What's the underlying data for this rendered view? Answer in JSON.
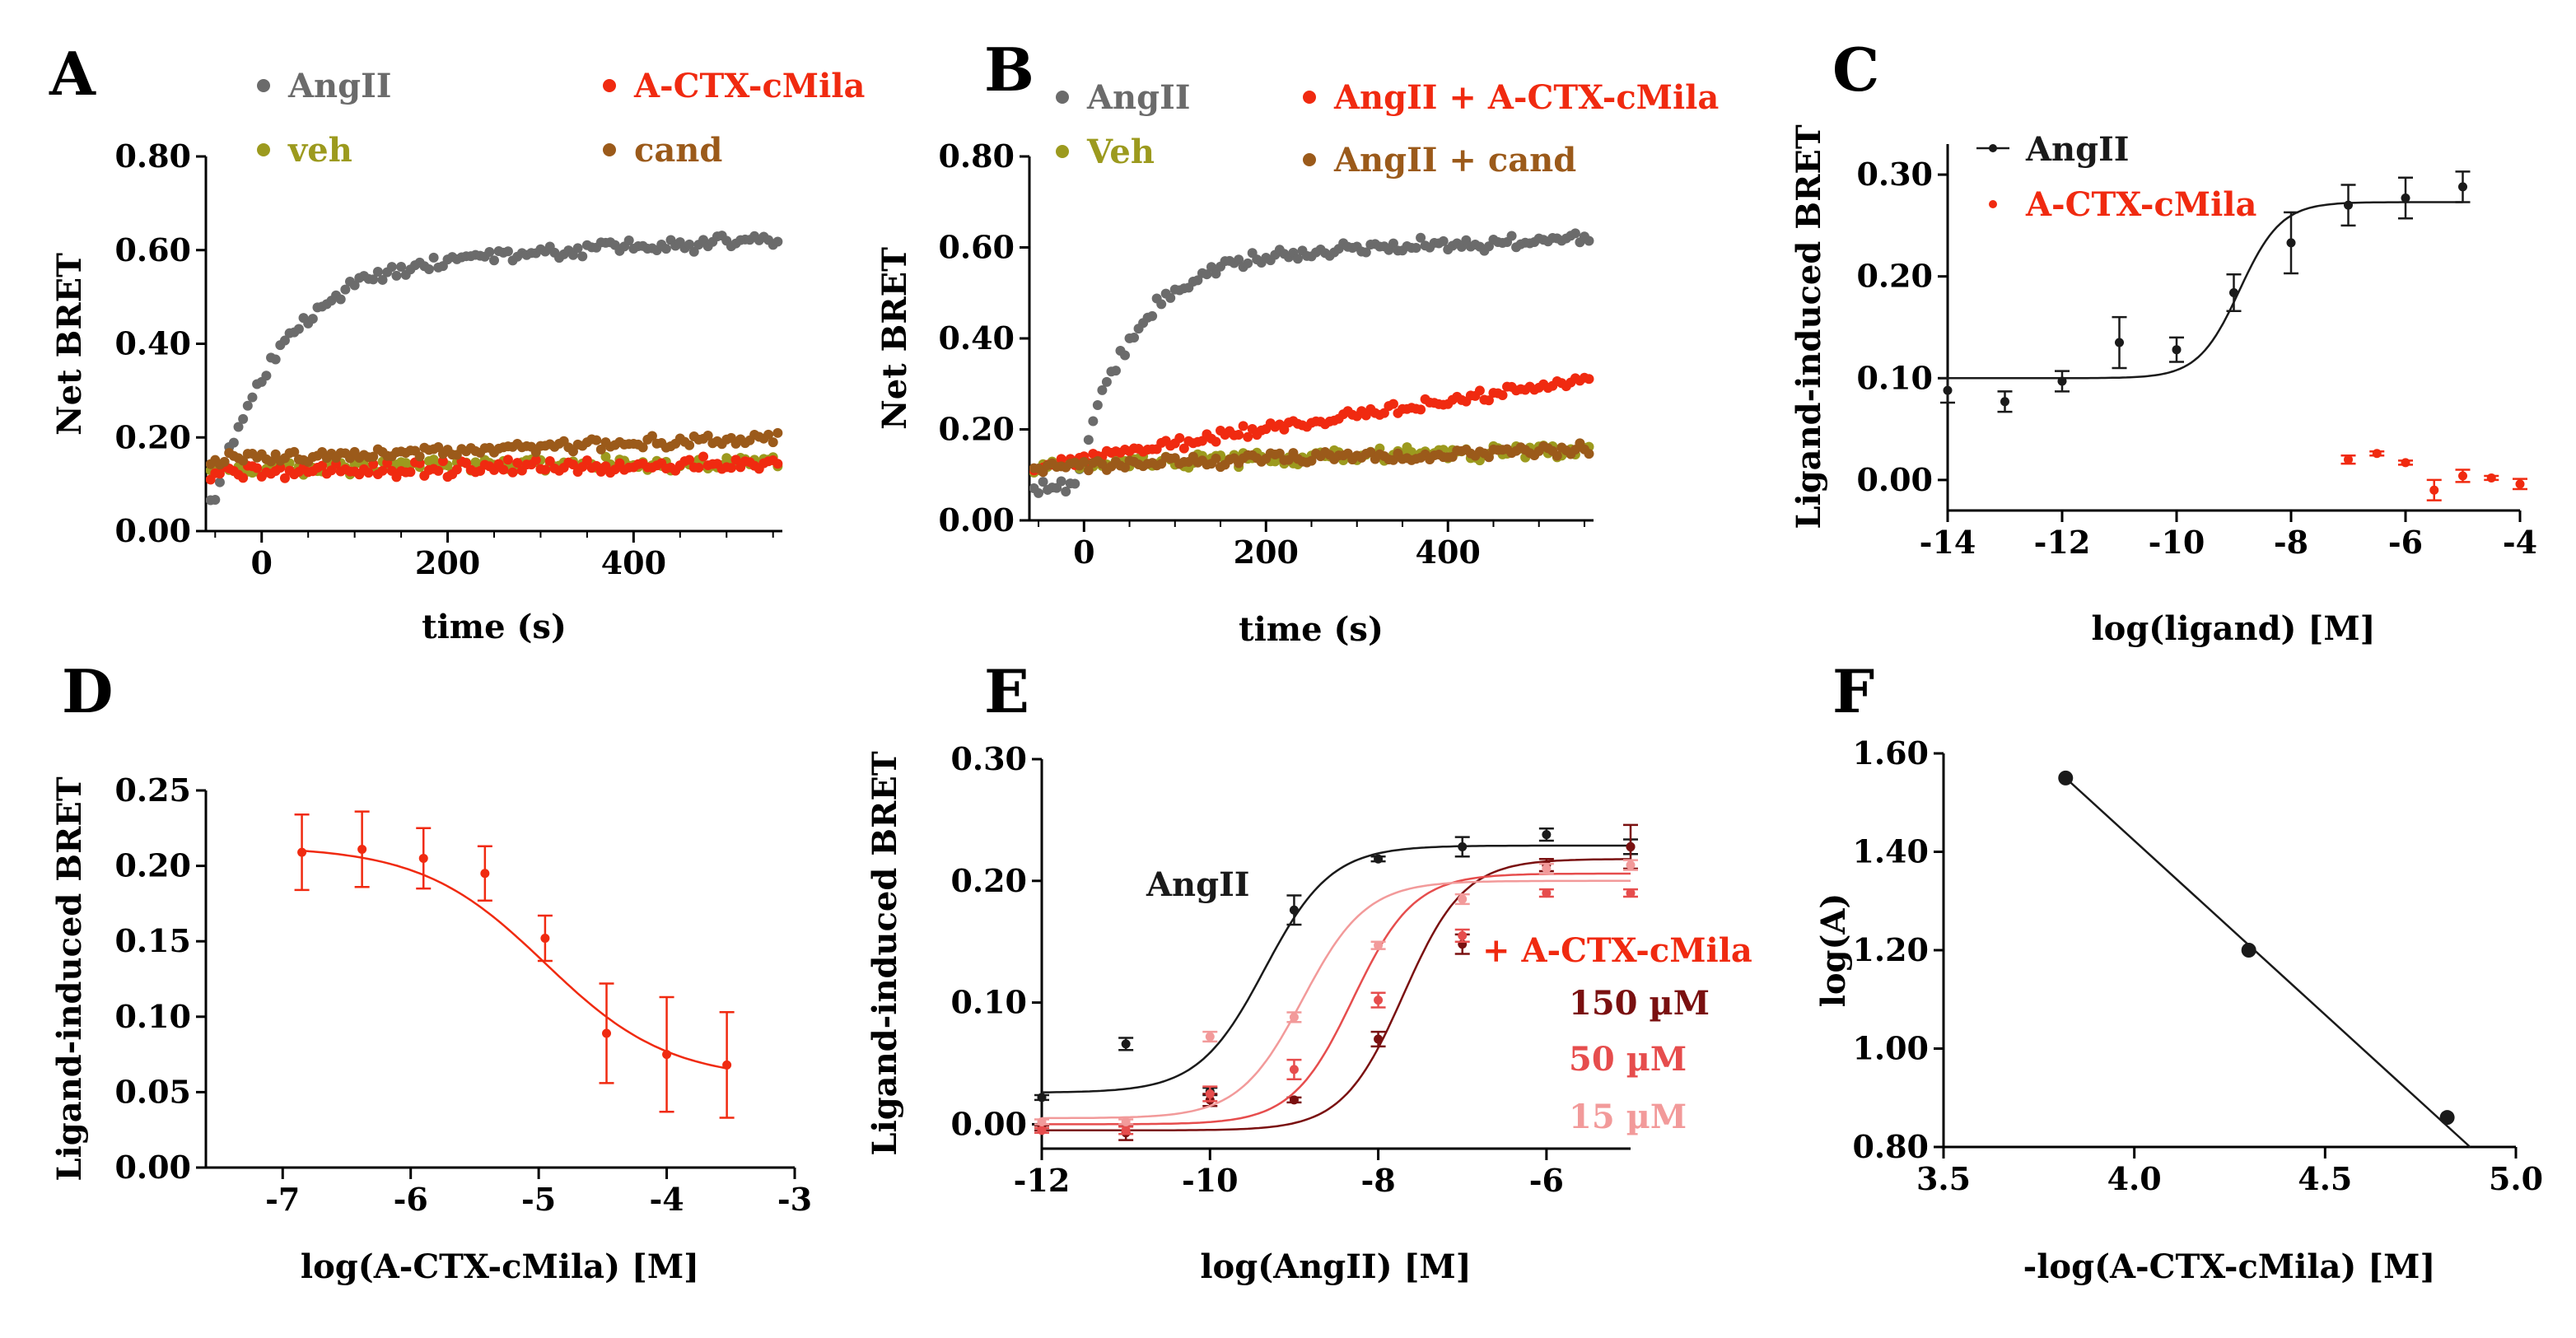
{
  "chart_data": [
    {
      "id": "A",
      "type": "scatter",
      "panel_label": "A",
      "xlabel": "time (s)",
      "ylabel": "Net BRET",
      "xlim": [
        -60,
        560
      ],
      "ylim": [
        0,
        0.8
      ],
      "xticks": [
        0,
        200,
        400
      ],
      "xtick_labels": [
        "0",
        "200",
        "400"
      ],
      "yticks": [
        0,
        0.2,
        0.4,
        0.6,
        0.8
      ],
      "ytick_labels": [
        "0.00",
        "0.20",
        "0.40",
        "0.60",
        "0.80"
      ],
      "legend": "top",
      "series": [
        {
          "name": "AngII",
          "color": "#6b6b6b",
          "model": "rise",
          "start": 0.075,
          "plateau": 0.575,
          "t0": -50,
          "tau": 70,
          "slope": 8e-05,
          "noise": 0.012
        },
        {
          "name": "veh",
          "color": "#9c9a1e",
          "model": "linear",
          "y0": 0.13,
          "slope": 3e-05,
          "noise": 0.012
        },
        {
          "name": "A-CTX-cMila",
          "color": "#f02a10",
          "model": "linear",
          "y0": 0.125,
          "slope": 3e-05,
          "noise": 0.012
        },
        {
          "name": "cand",
          "color": "#9b5a1a",
          "model": "linear",
          "y0": 0.152,
          "slope": 8e-05,
          "noise": 0.01
        }
      ]
    },
    {
      "id": "B",
      "type": "scatter",
      "panel_label": "B",
      "xlabel": "time (s)",
      "ylabel": "Net BRET",
      "xlim": [
        -60,
        560
      ],
      "ylim": [
        0,
        0.8
      ],
      "xticks": [
        0,
        200,
        400
      ],
      "xtick_labels": [
        "0",
        "200",
        "400"
      ],
      "yticks": [
        0,
        0.2,
        0.4,
        0.6,
        0.8
      ],
      "ytick_labels": [
        "0.00",
        "0.20",
        "0.40",
        "0.60",
        "0.80"
      ],
      "legend": "top",
      "series": [
        {
          "name": "AngII",
          "color": "#6b6b6b",
          "model": "rise",
          "start": 0.075,
          "plateau": 0.575,
          "t0": -10,
          "tau": 60,
          "slope": 8e-05,
          "noise": 0.012
        },
        {
          "name": "Veh",
          "color": "#9c9a1e",
          "model": "linear",
          "y0": 0.12,
          "slope": 6e-05,
          "noise": 0.012
        },
        {
          "name": "AngII + A-CTX-cMila",
          "color": "#f02a10",
          "model": "linear",
          "y0": 0.12,
          "slope": 0.00032,
          "noise": 0.01
        },
        {
          "name": "AngII + cand",
          "color": "#9b5a1a",
          "model": "linear",
          "y0": 0.12,
          "slope": 6e-05,
          "noise": 0.01
        }
      ]
    },
    {
      "id": "C",
      "type": "scatter",
      "panel_label": "C",
      "xlabel": "log(ligand) [M]",
      "ylabel": "Ligand-induced BRET",
      "xlim": [
        -14,
        -4
      ],
      "ylim": [
        -0.03,
        0.33
      ],
      "xticks": [
        -14,
        -12,
        -10,
        -8,
        -6,
        -4
      ],
      "xtick_labels": [
        "-14",
        "-12",
        "-10",
        "-8",
        "-6",
        "-4"
      ],
      "yticks": [
        0,
        0.1,
        0.2,
        0.3
      ],
      "ytick_labels": [
        "0.00",
        "0.10",
        "0.20",
        "0.30"
      ],
      "legend": "top-left",
      "series": [
        {
          "name": "AngII",
          "color": "#1a1a1a",
          "x": [
            -14,
            -13,
            -12,
            -11,
            -10,
            -9,
            -8,
            -7,
            -6,
            -5
          ],
          "y": [
            0.088,
            0.077,
            0.097,
            0.135,
            0.128,
            0.184,
            0.233,
            0.27,
            0.277,
            0.288
          ],
          "err": [
            0.012,
            0.01,
            0.01,
            0.025,
            0.012,
            0.018,
            0.03,
            0.02,
            0.02,
            0.015
          ],
          "fit": {
            "bottom": 0.1,
            "top": 0.273,
            "logEC50": -8.9,
            "hill": 1.2
          }
        },
        {
          "name": "A-CTX-cMila",
          "color": "#f02a10",
          "x": [
            -7,
            -6.5,
            -6,
            -5.5,
            -5,
            -4.5,
            -4
          ],
          "y": [
            0.02,
            0.026,
            0.017,
            -0.01,
            0.004,
            0.002,
            -0.004
          ],
          "err": [
            0.004,
            0.002,
            0.002,
            0.01,
            0.006,
            0.002,
            0.005
          ]
        }
      ]
    },
    {
      "id": "D",
      "type": "scatter",
      "panel_label": "D",
      "xlabel": "log(A-CTX-cMila) [M]",
      "ylabel": "Ligand-induced BRET",
      "xlim": [
        -7.6,
        -3
      ],
      "ylim": [
        0,
        0.25
      ],
      "xticks": [
        -7,
        -6,
        -5,
        -4,
        -3
      ],
      "xtick_labels": [
        "-7",
        "-6",
        "-5",
        "-4",
        "-3"
      ],
      "yticks": [
        0,
        0.05,
        0.1,
        0.15,
        0.2,
        0.25
      ],
      "ytick_labels": [
        "0.00",
        "0.05",
        "0.10",
        "0.15",
        "0.20",
        "0.25"
      ],
      "legend": "none",
      "series": [
        {
          "name": "A-CTX-cMila",
          "color": "#f02a10",
          "x": [
            -6.85,
            -6.38,
            -5.9,
            -5.42,
            -4.95,
            -4.47,
            -4.0,
            -3.53
          ],
          "y": [
            0.209,
            0.211,
            0.205,
            0.195,
            0.152,
            0.089,
            0.075,
            0.068
          ],
          "err": [
            0.025,
            0.025,
            0.02,
            0.018,
            0.015,
            0.033,
            0.038,
            0.035
          ],
          "fit": {
            "bottom": 0.058,
            "top": 0.213,
            "logEC50": -4.95,
            "hill": -0.9
          }
        }
      ]
    },
    {
      "id": "E",
      "type": "scatter",
      "panel_label": "E",
      "xlabel": "log(AngII) [M]",
      "ylabel": "Ligand-induced BRET",
      "xlim": [
        -12,
        -5
      ],
      "ylim": [
        -0.02,
        0.3
      ],
      "xticks": [
        -12,
        -10,
        -8,
        -6
      ],
      "xtick_labels": [
        "-12",
        "-10",
        "-8",
        "-6"
      ],
      "yticks": [
        0,
        0.1,
        0.2,
        0.3
      ],
      "ytick_labels": [
        "0.00",
        "0.10",
        "0.20",
        "0.30"
      ],
      "legend": "inline",
      "annotations": {
        "angii": "AngII",
        "plus": "+ A-CTX-cMila"
      },
      "series": [
        {
          "name": "AngII",
          "color": "#1a1a1a",
          "x": [
            -12,
            -11,
            -10,
            -9,
            -8,
            -7,
            -6,
            -5
          ],
          "y": [
            0.022,
            0.066,
            0.027,
            0.176,
            0.218,
            0.228,
            0.238,
            0.228
          ],
          "err": [
            0.002,
            0.005,
            0.003,
            0.012,
            0.002,
            0.008,
            0.005,
            0.006
          ],
          "fit": {
            "bottom": 0.026,
            "top": 0.229,
            "logEC50": -9.35,
            "hill": 1.1
          }
        },
        {
          "name": "150 µM",
          "color": "#7a1010",
          "x": [
            -12,
            -11,
            -10,
            -9,
            -8,
            -7,
            -6,
            -5
          ],
          "y": [
            -0.003,
            -0.007,
            0.02,
            0.02,
            0.07,
            0.148,
            0.213,
            0.228
          ],
          "err": [
            0.002,
            0.006,
            0.005,
            0.002,
            0.006,
            0.008,
            0.005,
            0.018
          ],
          "fit": {
            "bottom": -0.005,
            "top": 0.218,
            "logEC50": -7.7,
            "hill": 1.2
          }
        },
        {
          "name": "50 µM",
          "color": "#e64d4d",
          "x": [
            -12,
            -11,
            -10,
            -9,
            -8,
            -7,
            -6,
            -5
          ],
          "y": [
            -0.005,
            -0.005,
            0.025,
            0.045,
            0.102,
            0.155,
            0.19,
            0.19
          ],
          "err": [
            0.002,
            0.003,
            0.006,
            0.008,
            0.006,
            0.005,
            0.003,
            0.003
          ],
          "fit": {
            "bottom": 0.0,
            "top": 0.206,
            "logEC50": -8.3,
            "hill": 1.2
          }
        },
        {
          "name": "15 µM",
          "color": "#f29a9a",
          "x": [
            -12,
            -11,
            -10,
            -9,
            -8,
            -7,
            -6,
            -5
          ],
          "y": [
            0.002,
            0.002,
            0.072,
            0.088,
            0.147,
            0.185,
            0.21,
            0.213
          ],
          "err": [
            0.002,
            0.002,
            0.004,
            0.004,
            0.003,
            0.004,
            0.004,
            0.004
          ],
          "fit": {
            "bottom": 0.005,
            "top": 0.2,
            "logEC50": -8.9,
            "hill": 1.15
          }
        }
      ]
    },
    {
      "id": "F",
      "type": "scatter",
      "panel_label": "F",
      "xlabel": "-log(A-CTX-cMila) [M]",
      "ylabel": "log(A)",
      "xlim": [
        3.5,
        5.0
      ],
      "ylim": [
        0.8,
        1.6
      ],
      "xticks": [
        3.5,
        4.0,
        4.5,
        5.0
      ],
      "xtick_labels": [
        "3.5",
        "4.0",
        "4.5",
        "5.0"
      ],
      "yticks": [
        0.8,
        1.0,
        1.2,
        1.4,
        1.6
      ],
      "ytick_labels": [
        "0.80",
        "1.00",
        "1.20",
        "1.40",
        "1.60"
      ],
      "legend": "none",
      "series": [
        {
          "name": "log(A)",
          "color": "#1a1a1a",
          "x": [
            3.82,
            4.3,
            4.82
          ],
          "y": [
            1.55,
            1.2,
            0.86
          ],
          "line": {
            "x1": 3.82,
            "y1": 1.55,
            "x2": 4.88,
            "y2": 0.8
          }
        }
      ]
    }
  ]
}
